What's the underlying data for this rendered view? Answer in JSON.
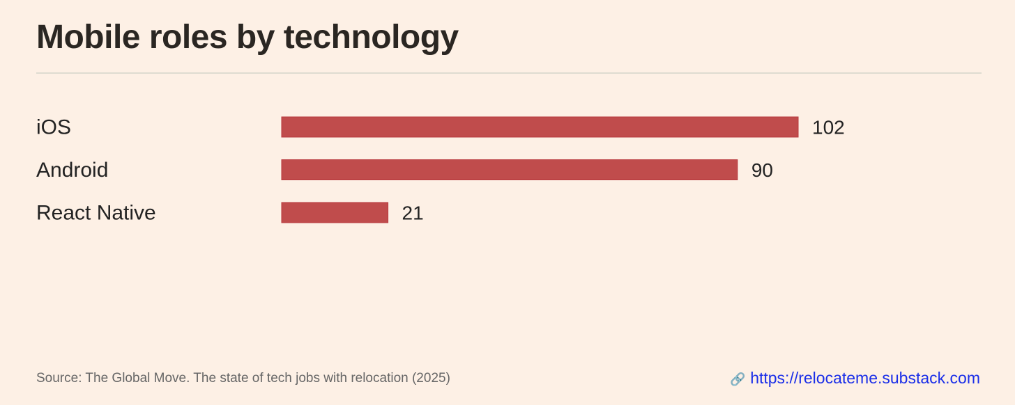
{
  "chart_data": {
    "type": "bar",
    "orientation": "horizontal",
    "title": "Mobile roles by technology",
    "categories": [
      "iOS",
      "Android",
      "React Native"
    ],
    "values": [
      102,
      90,
      21
    ],
    "xlabel": "",
    "ylabel": "",
    "xlim": [
      0,
      102
    ],
    "grid": false,
    "bar_color": "#c04c4c"
  },
  "footer": {
    "source": "Source: The Global Move. The state of tech jobs with relocation (2025)",
    "link_icon": "🔗",
    "link": "https://relocateme.substack.com"
  }
}
